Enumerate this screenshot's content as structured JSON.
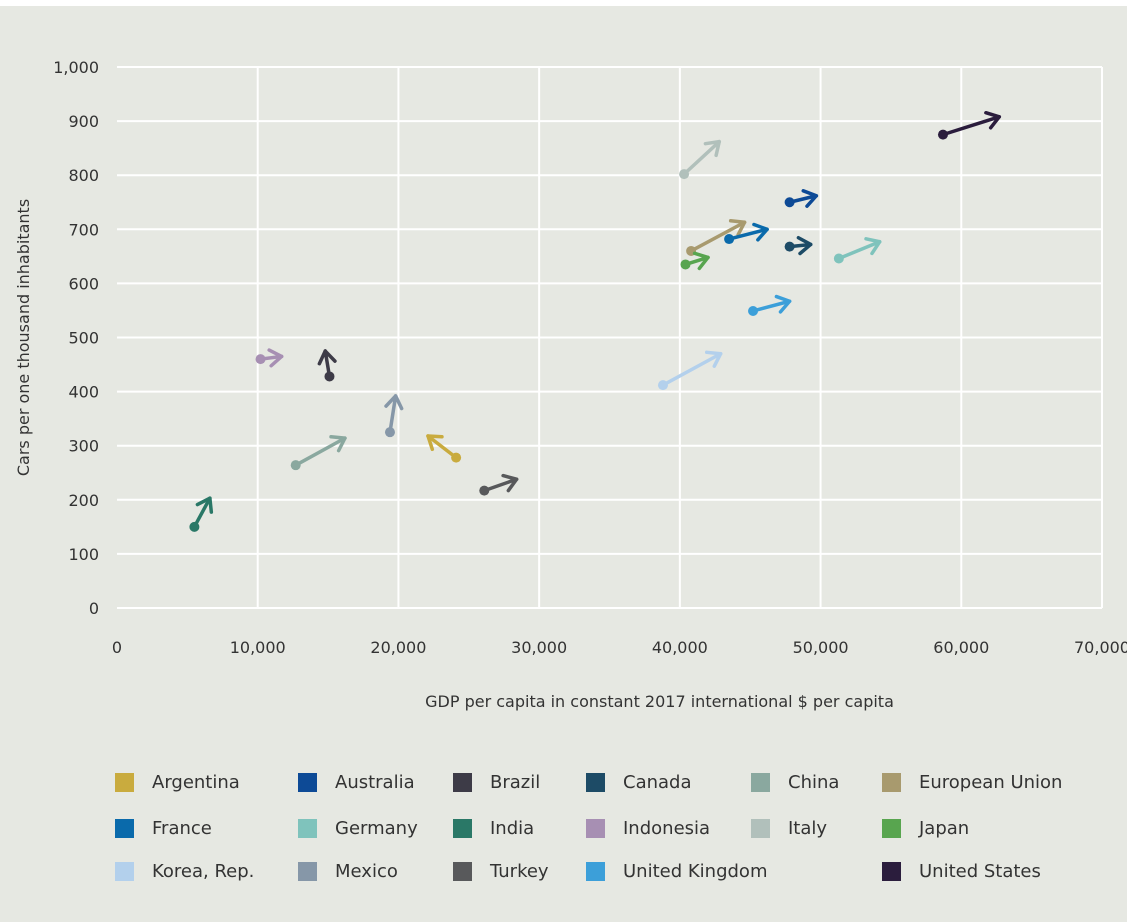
{
  "chart_data": {
    "type": "scatter",
    "xlabel": "GDP per capita in constant 2017 international $ per capita",
    "ylabel": "Cars per one thousand inhabitants",
    "xlim": [
      0,
      70000
    ],
    "ylim": [
      0,
      1000
    ],
    "x_ticks": [
      "0",
      "10,000",
      "20,000",
      "30,000",
      "40,000",
      "50,000",
      "60,000",
      "70,000"
    ],
    "y_ticks": [
      "0",
      "100",
      "200",
      "300",
      "400",
      "500",
      "600",
      "700",
      "800",
      "900",
      "1,000"
    ],
    "grid": true,
    "legend_position": "bottom",
    "series": [
      {
        "name": "Argentina",
        "color": "#c9ab3e",
        "start": {
          "x": 24100,
          "y": 278
        },
        "end": {
          "x": 22100,
          "y": 318
        }
      },
      {
        "name": "Australia",
        "color": "#0d4a96",
        "start": {
          "x": 47800,
          "y": 750
        },
        "end": {
          "x": 49700,
          "y": 762
        }
      },
      {
        "name": "Brazil",
        "color": "#3d3b47",
        "start": {
          "x": 15100,
          "y": 428
        },
        "end": {
          "x": 14800,
          "y": 475
        }
      },
      {
        "name": "Canada",
        "color": "#1d4b66",
        "start": {
          "x": 47800,
          "y": 668
        },
        "end": {
          "x": 49300,
          "y": 672
        }
      },
      {
        "name": "China",
        "color": "#8aa89f",
        "start": {
          "x": 12700,
          "y": 264
        },
        "end": {
          "x": 16200,
          "y": 314
        }
      },
      {
        "name": "European Union",
        "color": "#a89a6e",
        "start": {
          "x": 40800,
          "y": 660
        },
        "end": {
          "x": 44600,
          "y": 713
        }
      },
      {
        "name": "France",
        "color": "#0a6aab",
        "start": {
          "x": 43500,
          "y": 682
        },
        "end": {
          "x": 46200,
          "y": 700
        }
      },
      {
        "name": "Germany",
        "color": "#7fc3bc",
        "start": {
          "x": 51300,
          "y": 646
        },
        "end": {
          "x": 54200,
          "y": 677
        }
      },
      {
        "name": "India",
        "color": "#2a7867",
        "start": {
          "x": 5500,
          "y": 150
        },
        "end": {
          "x": 6600,
          "y": 203
        }
      },
      {
        "name": "Indonesia",
        "color": "#a78fb3",
        "start": {
          "x": 10200,
          "y": 460
        },
        "end": {
          "x": 11700,
          "y": 465
        }
      },
      {
        "name": "Italy",
        "color": "#b1c0bb",
        "start": {
          "x": 40300,
          "y": 802
        },
        "end": {
          "x": 42800,
          "y": 862
        }
      },
      {
        "name": "Japan",
        "color": "#58a54f",
        "start": {
          "x": 40400,
          "y": 635
        },
        "end": {
          "x": 42000,
          "y": 648
        }
      },
      {
        "name": "Korea, Rep.",
        "color": "#b3d0ec",
        "start": {
          "x": 38800,
          "y": 412
        },
        "end": {
          "x": 42900,
          "y": 470
        }
      },
      {
        "name": "Mexico",
        "color": "#8697a8",
        "start": {
          "x": 19400,
          "y": 325
        },
        "end": {
          "x": 19800,
          "y": 392
        }
      },
      {
        "name": "Turkey",
        "color": "#58595b",
        "start": {
          "x": 26100,
          "y": 217
        },
        "end": {
          "x": 28400,
          "y": 238
        }
      },
      {
        "name": "United Kingdom",
        "color": "#3c9fd9",
        "start": {
          "x": 45200,
          "y": 549
        },
        "end": {
          "x": 47800,
          "y": 567
        }
      },
      {
        "name": "United States",
        "color": "#2b1d3d",
        "start": {
          "x": 58700,
          "y": 875
        },
        "end": {
          "x": 62700,
          "y": 908
        }
      }
    ]
  }
}
